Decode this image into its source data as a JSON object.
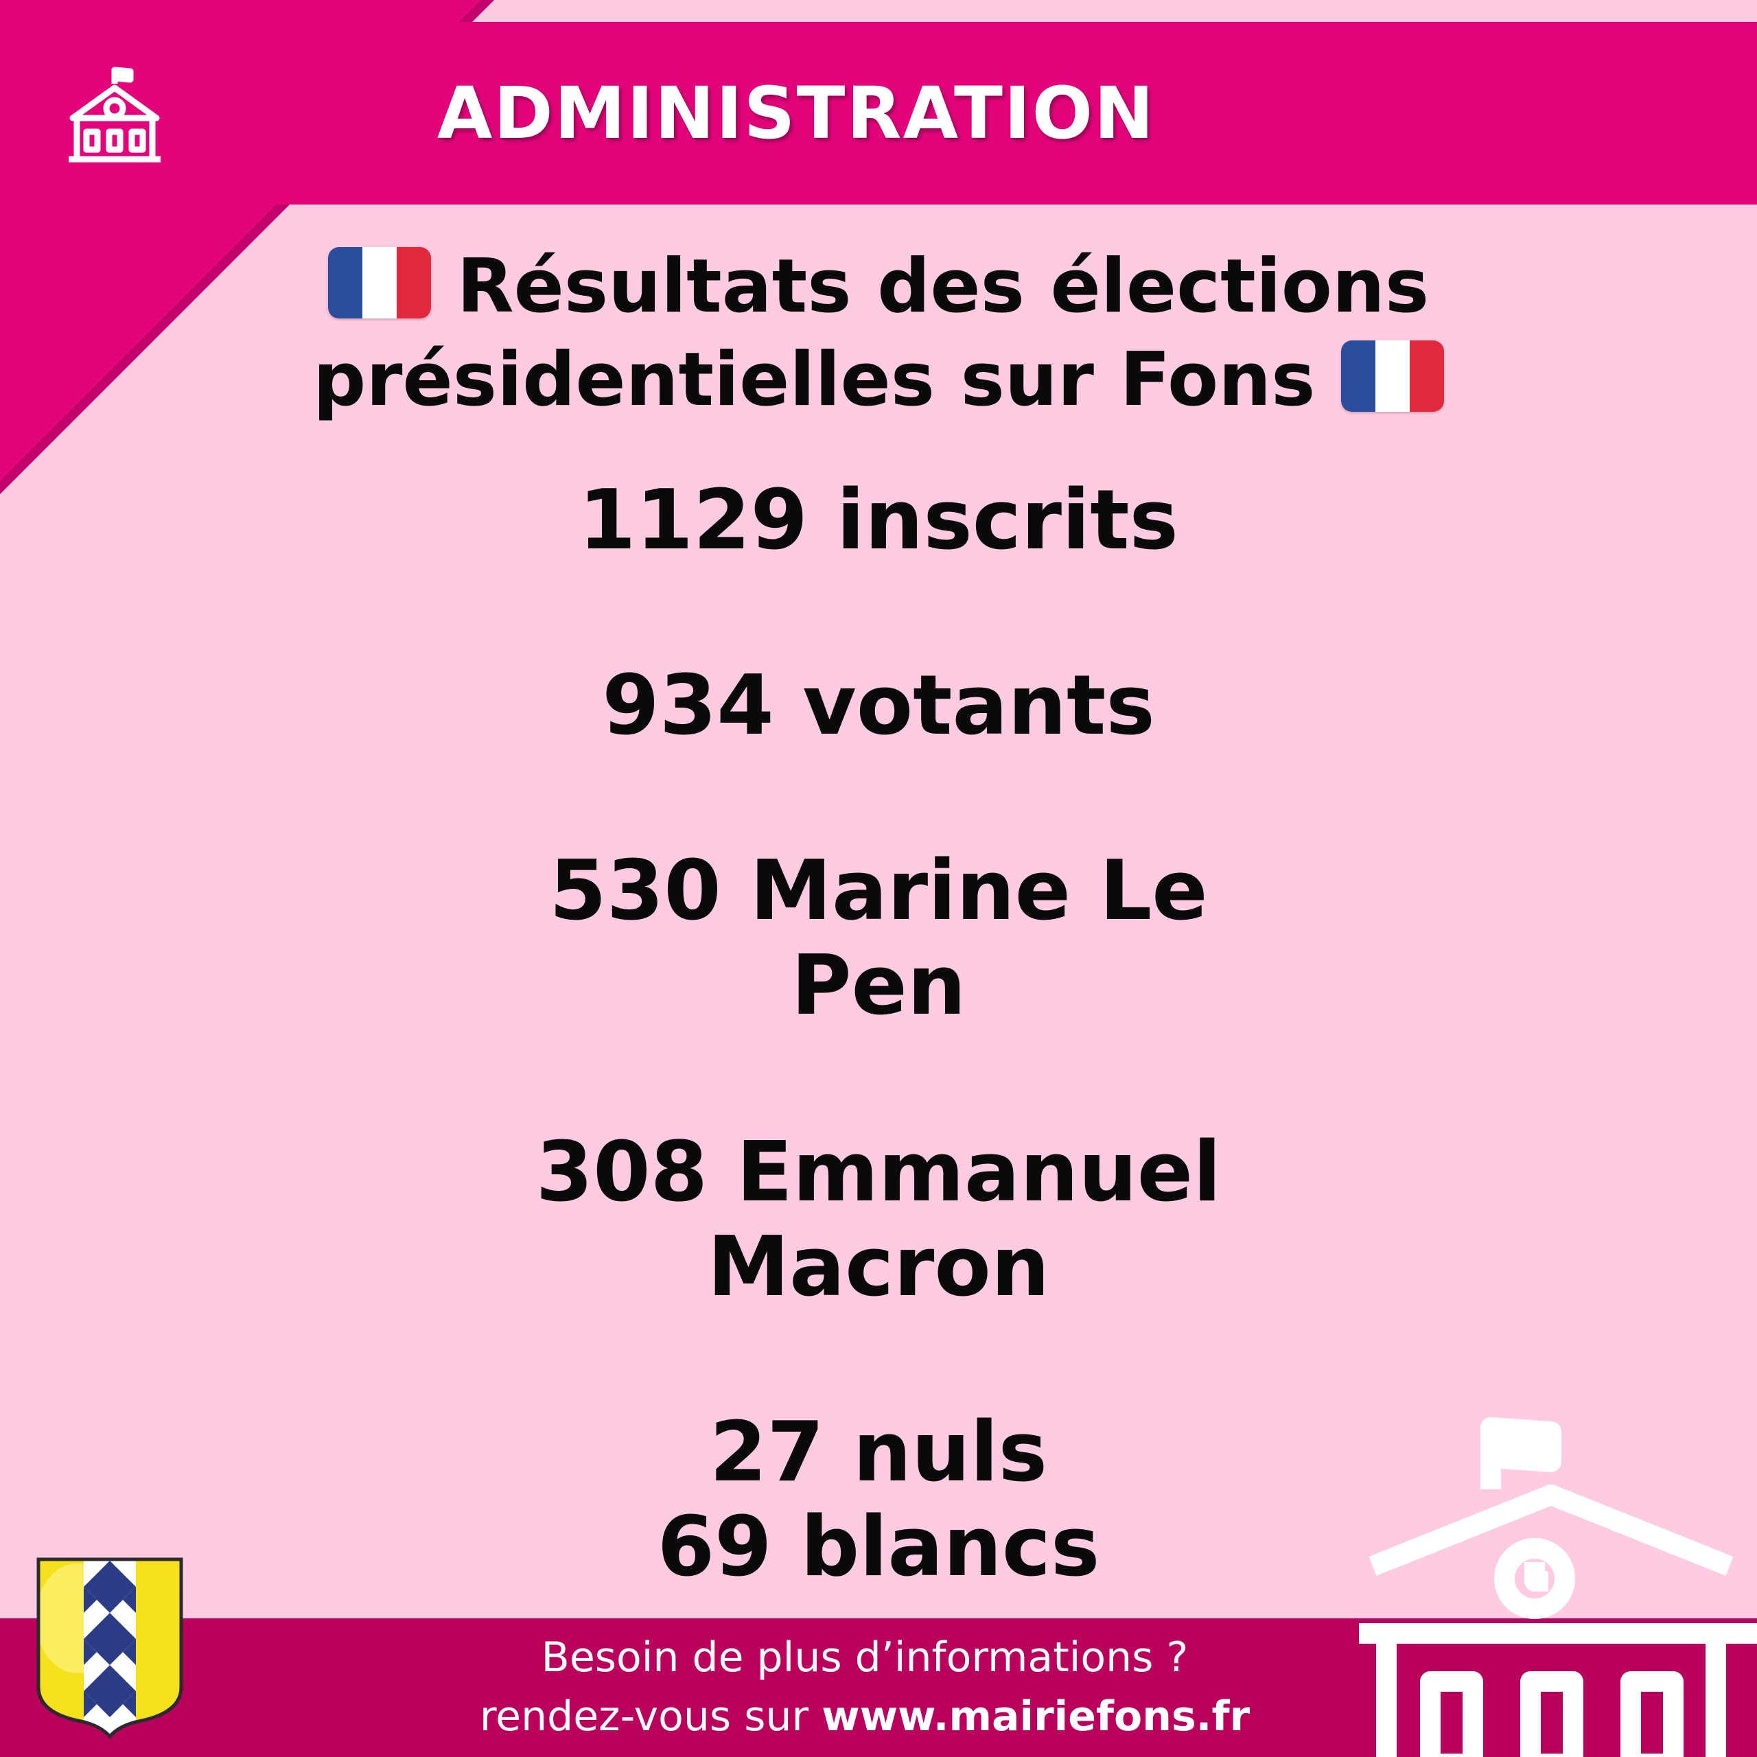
{
  "header": {
    "title": "ADMINISTRATION",
    "icon": "town-hall-icon",
    "color": "#e3047c"
  },
  "title": {
    "flag_icon": "french-flag-icon",
    "line1": "Résultats des élections",
    "line2": "présidentielles sur Fons"
  },
  "stats": {
    "inscrits": "1129 inscrits",
    "votants": "934 votants",
    "le_pen_line1": "530 Marine Le",
    "le_pen_line2": "Pen",
    "macron_line1": "308 Emmanuel",
    "macron_line2": "Macron",
    "nuls": "27 nuls",
    "blancs": "69 blancs"
  },
  "footer": {
    "line1": "Besoin de plus d’informations ?",
    "line2_prefix": "rendez-vous sur ",
    "website": "www.mairiefons.fr",
    "color": "#b8005c",
    "coat_icon": "coat-of-arms-icon",
    "building_icon": "town-hall-icon"
  },
  "colors": {
    "background": "#fecbe3",
    "flag_blue": "#2c4c9c",
    "flag_red": "#e1283c"
  }
}
